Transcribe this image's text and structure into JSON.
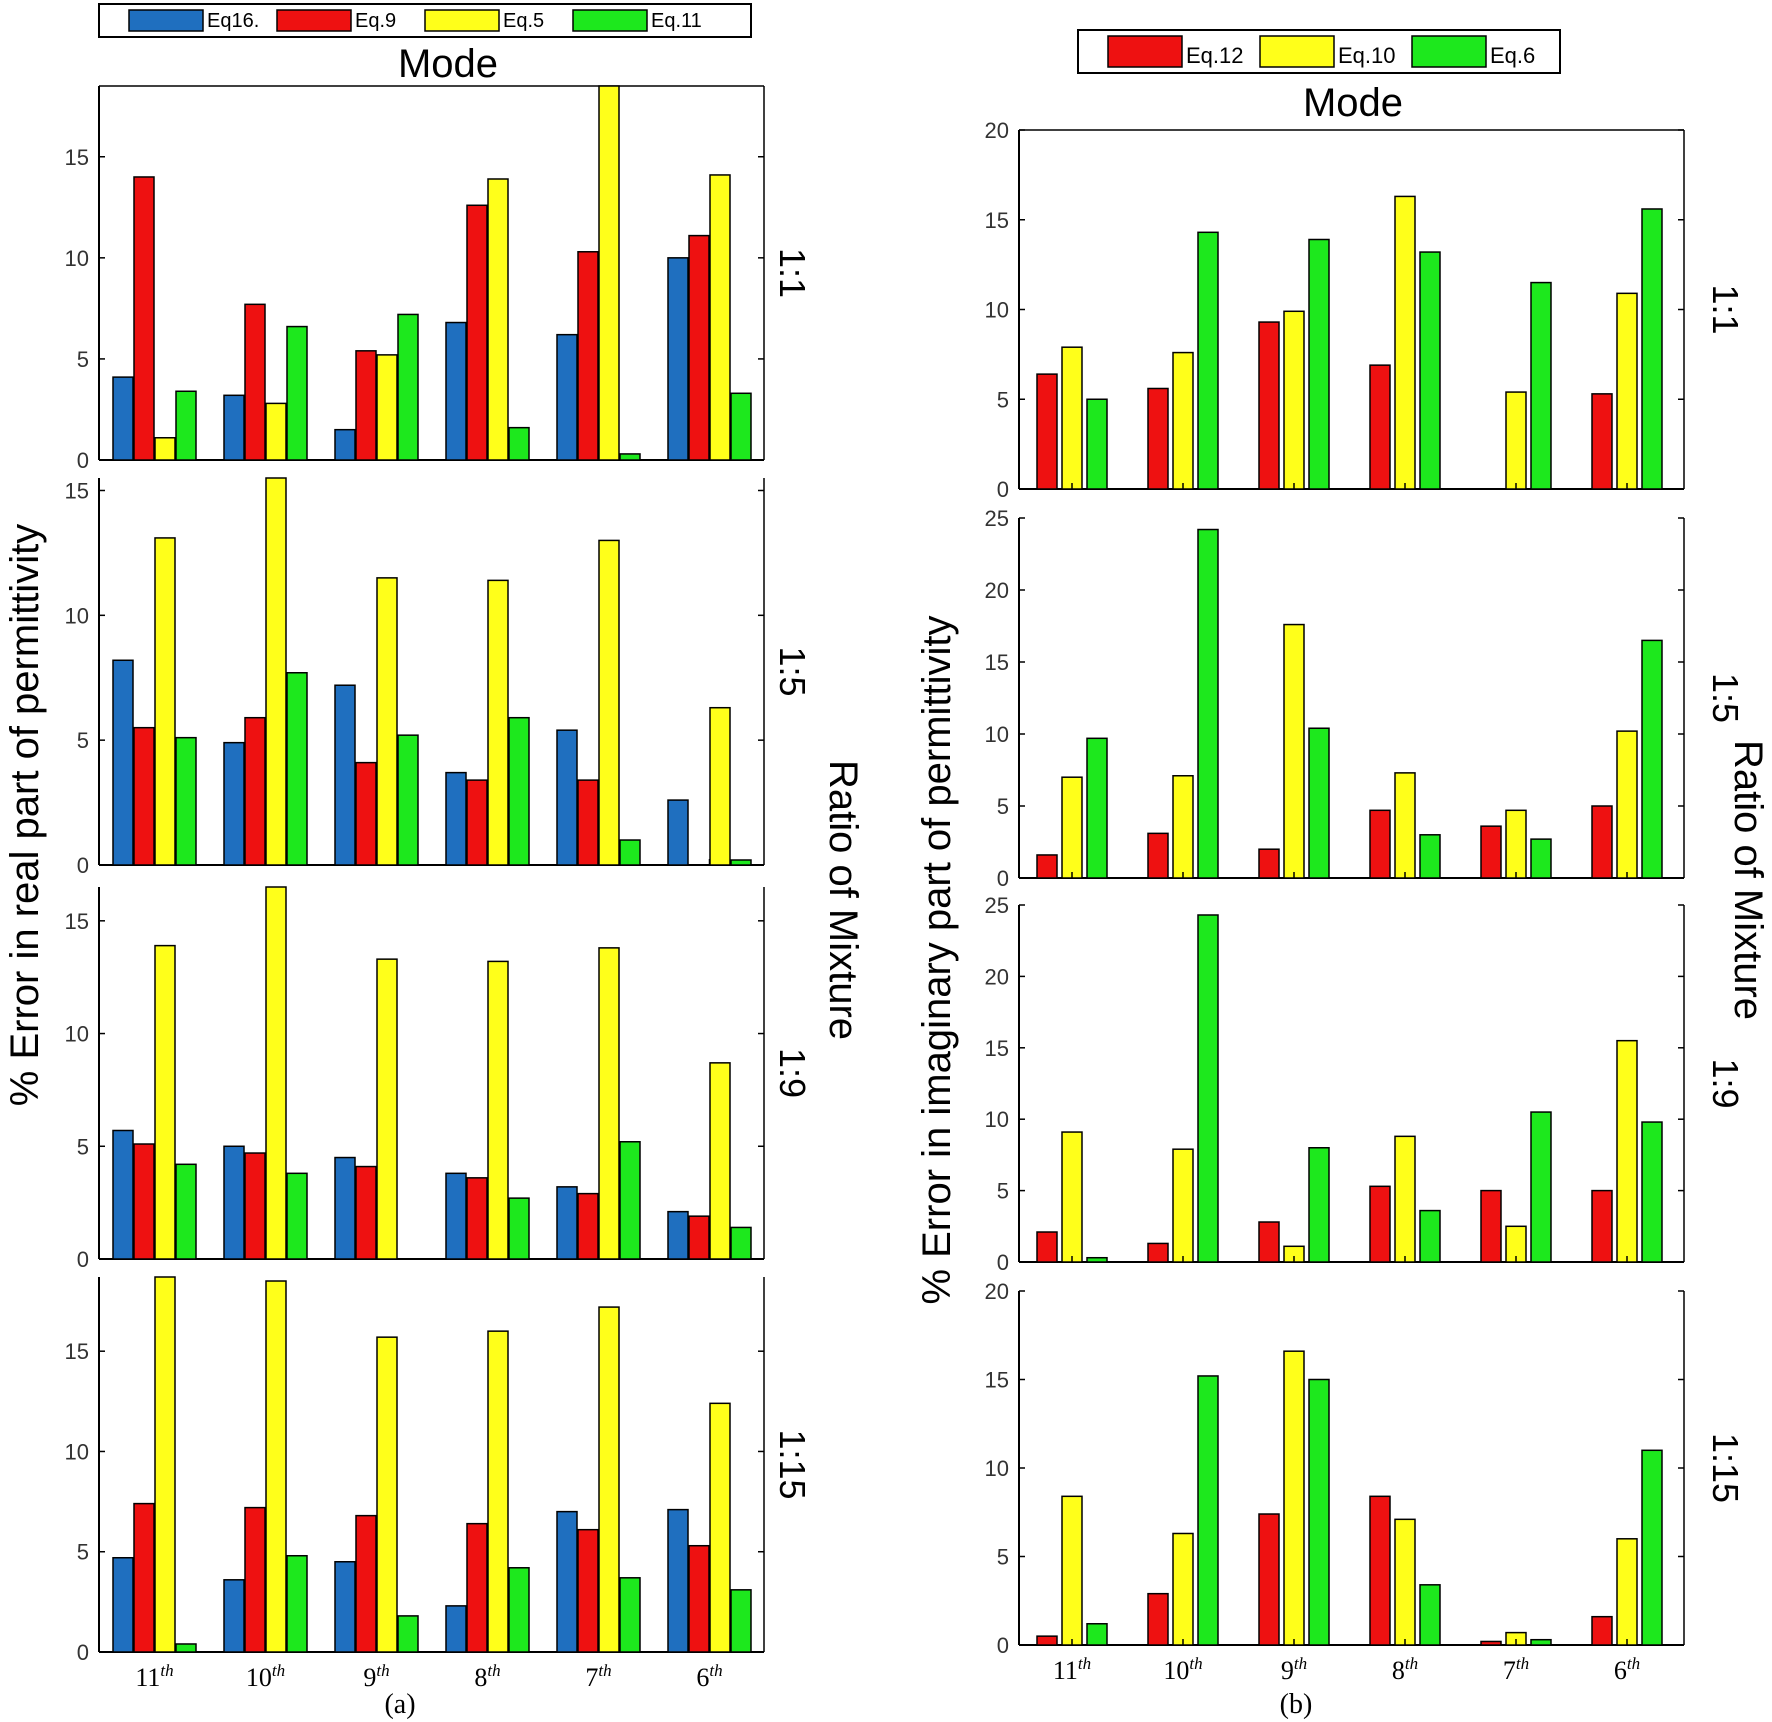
{
  "colors": {
    "Eq16.": "#1f6fbf",
    "Eq.9": "#ee1111",
    "Eq.12": "#ee1111",
    "Eq.5": "#ffff1a",
    "Eq.10": "#ffff1a",
    "Eq.11": "#1de81d",
    "Eq.6": "#1de81d"
  },
  "chart_data": [
    {
      "type": "bar",
      "caption": "(a)",
      "top_label": "Mode",
      "ylabel": "% Error in real part of permittivity",
      "right_label": "Ratio of Mixture",
      "categories": [
        "11",
        "10",
        "9",
        "8",
        "7",
        "6"
      ],
      "category_superscript": "th",
      "legend": [
        "Eq16.",
        "Eq.9",
        "Eq.5",
        "Eq.11"
      ],
      "panels": [
        {
          "ratio": "1:1",
          "ylim": [
            0,
            18.5
          ],
          "yticks": [
            0,
            5,
            10,
            15
          ],
          "series": [
            {
              "name": "Eq16.",
              "values": [
                4.1,
                3.2,
                1.5,
                6.8,
                6.2,
                10.0
              ]
            },
            {
              "name": "Eq.9",
              "values": [
                14.0,
                7.7,
                5.4,
                12.6,
                10.3,
                11.1
              ]
            },
            {
              "name": "Eq.5",
              "values": [
                1.1,
                2.8,
                5.2,
                13.9,
                18.5,
                14.1
              ]
            },
            {
              "name": "Eq.11",
              "values": [
                3.4,
                6.6,
                7.2,
                1.6,
                0.3,
                3.3
              ]
            }
          ]
        },
        {
          "ratio": "1:5",
          "ylim": [
            0,
            15.5
          ],
          "yticks": [
            0,
            5,
            10,
            15
          ],
          "series": [
            {
              "name": "Eq16.",
              "values": [
                8.2,
                4.9,
                7.2,
                3.7,
                5.4,
                2.6
              ]
            },
            {
              "name": "Eq.9",
              "values": [
                5.5,
                5.9,
                4.1,
                3.4,
                3.4,
                0
              ]
            },
            {
              "name": "Eq.5",
              "values": [
                13.1,
                15.5,
                11.5,
                11.4,
                13.0,
                6.3
              ]
            },
            {
              "name": "Eq.11",
              "values": [
                5.1,
                7.7,
                5.2,
                5.9,
                1.0,
                0.2
              ]
            }
          ]
        },
        {
          "ratio": "1:9",
          "ylim": [
            0,
            16.5
          ],
          "yticks": [
            0,
            5,
            10,
            15
          ],
          "series": [
            {
              "name": "Eq16.",
              "values": [
                5.7,
                5.0,
                4.5,
                3.8,
                3.2,
                2.1
              ]
            },
            {
              "name": "Eq.9",
              "values": [
                5.1,
                4.7,
                4.1,
                3.6,
                2.9,
                1.9
              ]
            },
            {
              "name": "Eq.5",
              "values": [
                13.9,
                16.5,
                13.3,
                13.2,
                13.8,
                8.7
              ]
            },
            {
              "name": "Eq.11",
              "values": [
                4.2,
                3.8,
                0,
                2.7,
                5.2,
                1.4
              ]
            }
          ]
        },
        {
          "ratio": "1:15",
          "ylim": [
            0,
            18.7
          ],
          "yticks": [
            0,
            5,
            10,
            15
          ],
          "series": [
            {
              "name": "Eq16.",
              "values": [
                4.7,
                3.6,
                4.5,
                2.3,
                7.0,
                7.1
              ]
            },
            {
              "name": "Eq.9",
              "values": [
                7.4,
                7.2,
                6.8,
                6.4,
                6.1,
                5.3
              ]
            },
            {
              "name": "Eq.5",
              "values": [
                18.7,
                18.5,
                15.7,
                16.0,
                17.2,
                12.4
              ]
            },
            {
              "name": "Eq.11",
              "values": [
                0.4,
                4.8,
                1.8,
                4.2,
                3.7,
                3.1
              ]
            }
          ]
        }
      ]
    },
    {
      "type": "bar",
      "caption": "(b)",
      "top_label": "Mode",
      "ylabel": "% Error in imaginary part of permittivity",
      "right_label": "Ratio of Mixture",
      "categories": [
        "11",
        "10",
        "9",
        "8",
        "7",
        "6"
      ],
      "category_superscript": "th",
      "legend": [
        "Eq.12",
        "Eq.10",
        "Eq.6"
      ],
      "panels": [
        {
          "ratio": "1:1",
          "ylim": [
            0,
            20
          ],
          "yticks": [
            0,
            5,
            10,
            15,
            20
          ],
          "series": [
            {
              "name": "Eq.12",
              "values": [
                6.4,
                5.6,
                9.3,
                6.9,
                0,
                5.3
              ]
            },
            {
              "name": "Eq.10",
              "values": [
                7.9,
                7.6,
                9.9,
                16.3,
                5.4,
                10.9
              ]
            },
            {
              "name": "Eq.6",
              "values": [
                5.0,
                14.3,
                13.9,
                13.2,
                11.5,
                15.6
              ]
            }
          ]
        },
        {
          "ratio": "1:5",
          "ylim": [
            0,
            25
          ],
          "yticks": [
            0,
            5,
            10,
            15,
            20,
            25
          ],
          "series": [
            {
              "name": "Eq.12",
              "values": [
                1.6,
                3.1,
                2.0,
                4.7,
                3.6,
                5.0
              ]
            },
            {
              "name": "Eq.10",
              "values": [
                7.0,
                7.1,
                17.6,
                7.3,
                4.7,
                10.2
              ]
            },
            {
              "name": "Eq.6",
              "values": [
                9.7,
                24.2,
                10.4,
                3.0,
                2.7,
                16.5
              ]
            }
          ]
        },
        {
          "ratio": "1:9",
          "ylim": [
            0,
            25
          ],
          "yticks": [
            0,
            5,
            10,
            15,
            20,
            25
          ],
          "series": [
            {
              "name": "Eq.12",
              "values": [
                2.1,
                1.3,
                2.8,
                5.3,
                5.0,
                5.0
              ]
            },
            {
              "name": "Eq.10",
              "values": [
                9.1,
                7.9,
                1.1,
                8.8,
                2.5,
                15.5
              ]
            },
            {
              "name": "Eq.6",
              "values": [
                0.3,
                24.3,
                8.0,
                3.6,
                10.5,
                9.8
              ]
            }
          ]
        },
        {
          "ratio": "1:15",
          "ylim": [
            0,
            20
          ],
          "yticks": [
            0,
            5,
            10,
            15,
            20
          ],
          "series": [
            {
              "name": "Eq.12",
              "values": [
                0.5,
                2.9,
                7.4,
                8.4,
                0.2,
                1.6
              ]
            },
            {
              "name": "Eq.10",
              "values": [
                8.4,
                6.3,
                16.6,
                7.1,
                0.7,
                6.0
              ]
            },
            {
              "name": "Eq.6",
              "values": [
                1.2,
                15.2,
                15.0,
                3.4,
                0.3,
                11.0
              ]
            }
          ]
        }
      ]
    }
  ]
}
